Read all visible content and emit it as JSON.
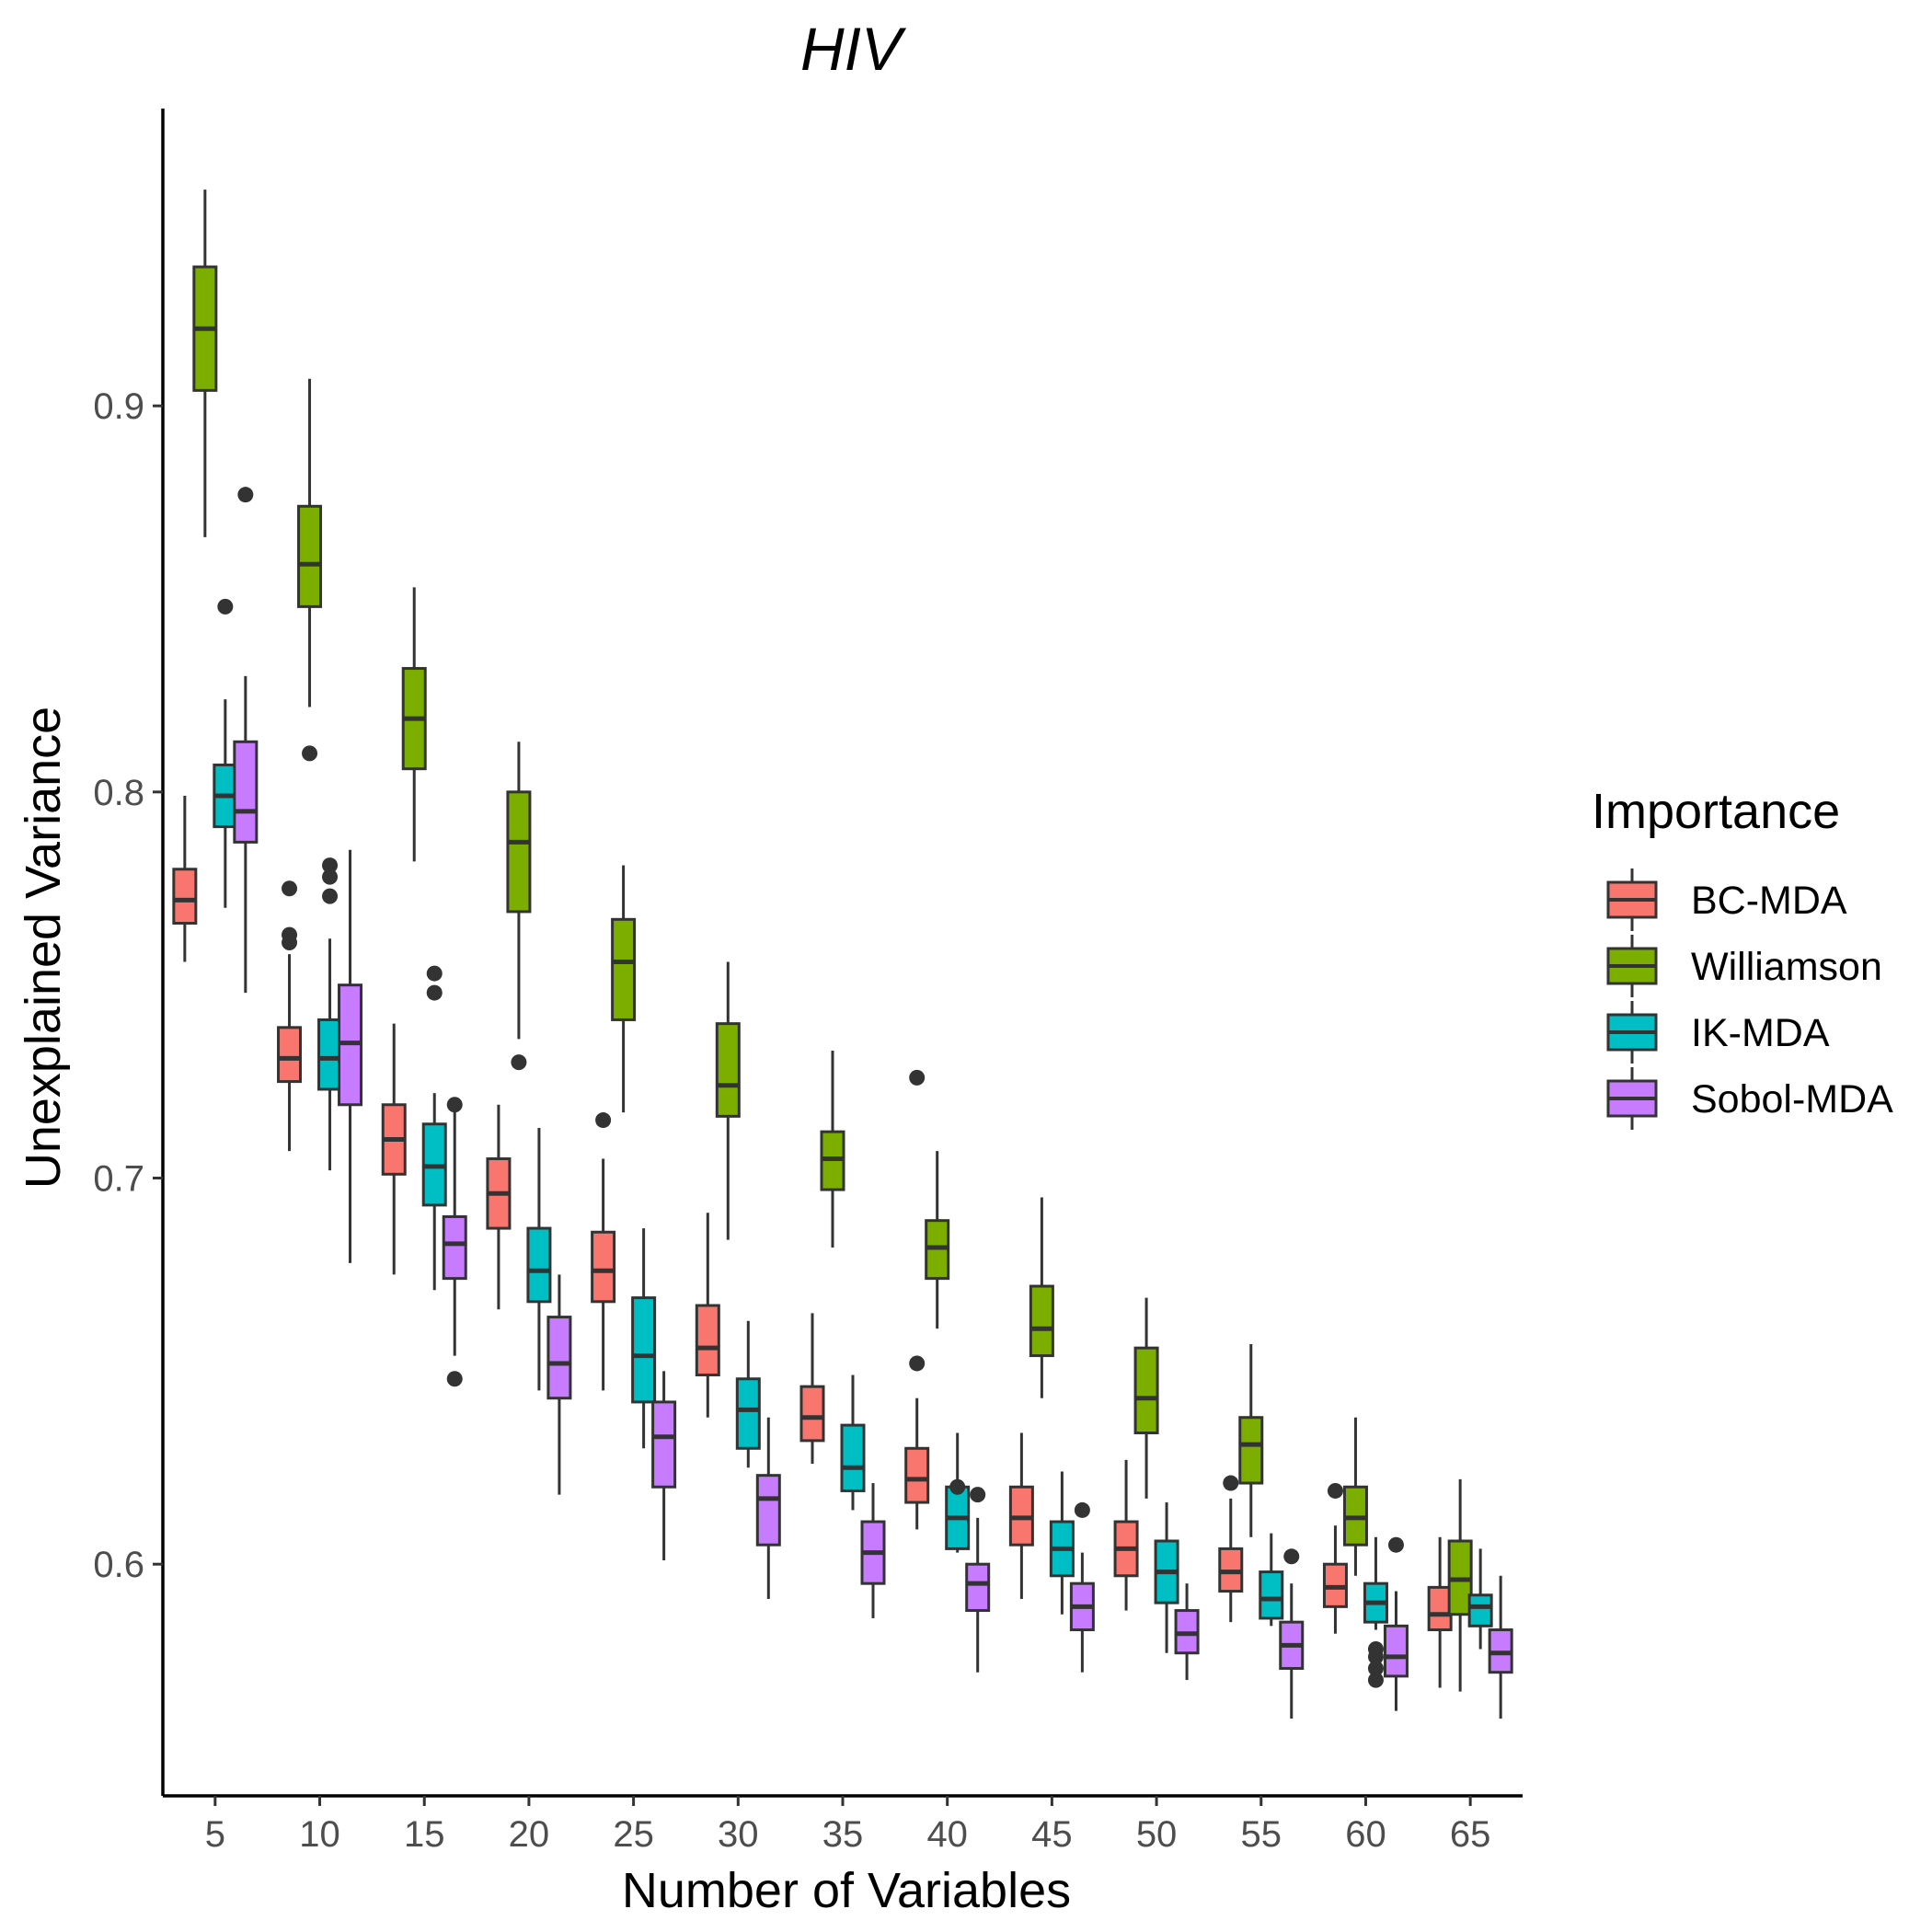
{
  "chart_data": {
    "type": "boxplot",
    "title": "HIV",
    "xlabel": "Number of Variables",
    "ylabel": "Unexplained Variance",
    "categories": [
      "5",
      "10",
      "15",
      "20",
      "25",
      "30",
      "35",
      "40",
      "45",
      "50",
      "55",
      "60",
      "65"
    ],
    "ylim": [
      0.54,
      0.977
    ],
    "yticks": [
      0.6,
      0.7,
      0.8,
      0.9
    ],
    "ytick_labels": [
      "0.6",
      "0.7",
      "0.8",
      "0.9"
    ],
    "legend": {
      "title": "Importance",
      "position": "right"
    },
    "series": [
      {
        "name": "BC-MDA",
        "color": "#F8766D",
        "boxes": [
          {
            "low": 0.756,
            "q1": 0.766,
            "median": 0.772,
            "q3": 0.78,
            "high": 0.799,
            "outliers": []
          },
          {
            "low": 0.707,
            "q1": 0.725,
            "median": 0.731,
            "q3": 0.739,
            "high": 0.758,
            "outliers": [
              0.775,
              0.763,
              0.761
            ]
          },
          {
            "low": 0.675,
            "q1": 0.701,
            "median": 0.71,
            "q3": 0.719,
            "high": 0.74,
            "outliers": []
          },
          {
            "low": 0.666,
            "q1": 0.687,
            "median": 0.696,
            "q3": 0.705,
            "high": 0.719,
            "outliers": []
          },
          {
            "low": 0.645,
            "q1": 0.668,
            "median": 0.676,
            "q3": 0.686,
            "high": 0.705,
            "outliers": [
              0.715
            ]
          },
          {
            "low": 0.638,
            "q1": 0.649,
            "median": 0.656,
            "q3": 0.667,
            "high": 0.691,
            "outliers": []
          },
          {
            "low": 0.626,
            "q1": 0.632,
            "median": 0.638,
            "q3": 0.646,
            "high": 0.665,
            "outliers": []
          },
          {
            "low": 0.609,
            "q1": 0.616,
            "median": 0.622,
            "q3": 0.63,
            "high": 0.643,
            "outliers": [
              0.652,
              0.726
            ]
          },
          {
            "low": 0.591,
            "q1": 0.605,
            "median": 0.612,
            "q3": 0.62,
            "high": 0.634,
            "outliers": []
          },
          {
            "low": 0.588,
            "q1": 0.597,
            "median": 0.604,
            "q3": 0.611,
            "high": 0.627,
            "outliers": []
          },
          {
            "low": 0.585,
            "q1": 0.593,
            "median": 0.598,
            "q3": 0.604,
            "high": 0.617,
            "outliers": [
              0.621
            ]
          },
          {
            "low": 0.582,
            "q1": 0.589,
            "median": 0.594,
            "q3": 0.6,
            "high": 0.61,
            "outliers": [
              0.619
            ]
          },
          {
            "low": 0.568,
            "q1": 0.583,
            "median": 0.587,
            "q3": 0.594,
            "high": 0.607,
            "outliers": []
          }
        ]
      },
      {
        "name": "Williamson",
        "color": "#7CAE00",
        "boxes": [
          {
            "low": 0.866,
            "q1": 0.904,
            "median": 0.92,
            "q3": 0.936,
            "high": 0.956,
            "outliers": []
          },
          {
            "low": 0.822,
            "q1": 0.848,
            "median": 0.859,
            "q3": 0.874,
            "high": 0.907,
            "outliers": [
              0.81
            ]
          },
          {
            "low": 0.782,
            "q1": 0.806,
            "median": 0.819,
            "q3": 0.832,
            "high": 0.853,
            "outliers": []
          },
          {
            "low": 0.736,
            "q1": 0.769,
            "median": 0.787,
            "q3": 0.8,
            "high": 0.813,
            "outliers": [
              0.73
            ]
          },
          {
            "low": 0.717,
            "q1": 0.741,
            "median": 0.756,
            "q3": 0.767,
            "high": 0.781,
            "outliers": []
          },
          {
            "low": 0.684,
            "q1": 0.716,
            "median": 0.724,
            "q3": 0.74,
            "high": 0.756,
            "outliers": []
          },
          {
            "low": 0.682,
            "q1": 0.697,
            "median": 0.705,
            "q3": 0.712,
            "high": 0.733,
            "outliers": []
          },
          {
            "low": 0.661,
            "q1": 0.674,
            "median": 0.682,
            "q3": 0.689,
            "high": 0.707,
            "outliers": []
          },
          {
            "low": 0.643,
            "q1": 0.654,
            "median": 0.661,
            "q3": 0.672,
            "high": 0.695,
            "outliers": []
          },
          {
            "low": 0.617,
            "q1": 0.634,
            "median": 0.643,
            "q3": 0.656,
            "high": 0.669,
            "outliers": []
          },
          {
            "low": 0.607,
            "q1": 0.621,
            "median": 0.631,
            "q3": 0.638,
            "high": 0.657,
            "outliers": []
          },
          {
            "low": 0.597,
            "q1": 0.605,
            "median": 0.612,
            "q3": 0.62,
            "high": 0.638,
            "outliers": []
          },
          {
            "low": 0.567,
            "q1": 0.587,
            "median": 0.596,
            "q3": 0.606,
            "high": 0.622,
            "outliers": []
          }
        ]
      },
      {
        "name": "IK-MDA",
        "color": "#00BFC4",
        "boxes": [
          {
            "low": 0.77,
            "q1": 0.791,
            "median": 0.799,
            "q3": 0.807,
            "high": 0.824,
            "outliers": [
              0.848
            ]
          },
          {
            "low": 0.702,
            "q1": 0.723,
            "median": 0.731,
            "q3": 0.741,
            "high": 0.762,
            "outliers": [
              0.781,
              0.778,
              0.773
            ]
          },
          {
            "low": 0.671,
            "q1": 0.693,
            "median": 0.703,
            "q3": 0.714,
            "high": 0.722,
            "outliers": [
              0.753,
              0.748
            ]
          },
          {
            "low": 0.645,
            "q1": 0.668,
            "median": 0.676,
            "q3": 0.687,
            "high": 0.713,
            "outliers": []
          },
          {
            "low": 0.63,
            "q1": 0.642,
            "median": 0.654,
            "q3": 0.669,
            "high": 0.687,
            "outliers": []
          },
          {
            "low": 0.625,
            "q1": 0.63,
            "median": 0.64,
            "q3": 0.648,
            "high": 0.663,
            "outliers": []
          },
          {
            "low": 0.614,
            "q1": 0.619,
            "median": 0.625,
            "q3": 0.636,
            "high": 0.649,
            "outliers": []
          },
          {
            "low": 0.603,
            "q1": 0.604,
            "median": 0.612,
            "q3": 0.62,
            "high": 0.634,
            "outliers": [
              0.62
            ]
          },
          {
            "low": 0.587,
            "q1": 0.597,
            "median": 0.604,
            "q3": 0.611,
            "high": 0.624,
            "outliers": []
          },
          {
            "low": 0.577,
            "q1": 0.59,
            "median": 0.598,
            "q3": 0.606,
            "high": 0.616,
            "outliers": []
          },
          {
            "low": 0.584,
            "q1": 0.586,
            "median": 0.591,
            "q3": 0.598,
            "high": 0.608,
            "outliers": []
          },
          {
            "low": 0.583,
            "q1": 0.585,
            "median": 0.59,
            "q3": 0.595,
            "high": 0.607,
            "outliers": [
              0.578,
              0.576,
              0.573,
              0.57
            ]
          },
          {
            "low": 0.578,
            "q1": 0.584,
            "median": 0.589,
            "q3": 0.592,
            "high": 0.604,
            "outliers": []
          }
        ]
      },
      {
        "name": "Sobol-MDA",
        "color": "#C77CFF",
        "boxes": [
          {
            "low": 0.748,
            "q1": 0.787,
            "median": 0.795,
            "q3": 0.813,
            "high": 0.83,
            "outliers": [
              0.877
            ]
          },
          {
            "low": 0.678,
            "q1": 0.719,
            "median": 0.735,
            "q3": 0.75,
            "high": 0.785,
            "outliers": []
          },
          {
            "low": 0.654,
            "q1": 0.674,
            "median": 0.683,
            "q3": 0.69,
            "high": 0.72,
            "outliers": [
              0.719,
              0.648
            ]
          },
          {
            "low": 0.618,
            "q1": 0.643,
            "median": 0.652,
            "q3": 0.664,
            "high": 0.675,
            "outliers": []
          },
          {
            "low": 0.601,
            "q1": 0.62,
            "median": 0.633,
            "q3": 0.642,
            "high": 0.65,
            "outliers": []
          },
          {
            "low": 0.591,
            "q1": 0.605,
            "median": 0.617,
            "q3": 0.623,
            "high": 0.638,
            "outliers": []
          },
          {
            "low": 0.586,
            "q1": 0.595,
            "median": 0.603,
            "q3": 0.611,
            "high": 0.621,
            "outliers": []
          },
          {
            "low": 0.572,
            "q1": 0.588,
            "median": 0.595,
            "q3": 0.6,
            "high": 0.612,
            "outliers": [
              0.618
            ]
          },
          {
            "low": 0.572,
            "q1": 0.583,
            "median": 0.589,
            "q3": 0.595,
            "high": 0.603,
            "outliers": [
              0.614
            ]
          },
          {
            "low": 0.57,
            "q1": 0.577,
            "median": 0.582,
            "q3": 0.588,
            "high": 0.595,
            "outliers": []
          },
          {
            "low": 0.56,
            "q1": 0.573,
            "median": 0.579,
            "q3": 0.585,
            "high": 0.595,
            "outliers": [
              0.602
            ]
          },
          {
            "low": 0.562,
            "q1": 0.571,
            "median": 0.576,
            "q3": 0.584,
            "high": 0.593,
            "outliers": [
              0.605
            ]
          },
          {
            "low": 0.56,
            "q1": 0.572,
            "median": 0.577,
            "q3": 0.583,
            "high": 0.597,
            "outliers": []
          }
        ]
      }
    ]
  }
}
